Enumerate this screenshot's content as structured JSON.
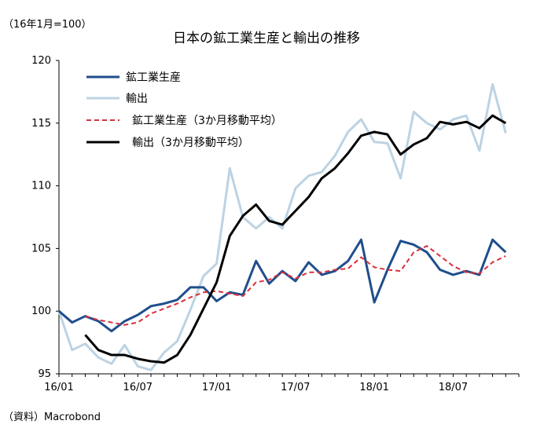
{
  "chart_data": {
    "type": "line",
    "title": "日本の鉱工業生産と輸出の推移",
    "index_note": "（16年1月=100）",
    "source_note": "（資料）Macrobond",
    "xlabel": "",
    "ylabel": "",
    "ylim": [
      95,
      120
    ],
    "y_ticks": [
      "95",
      "100",
      "105",
      "110",
      "115",
      "120"
    ],
    "x_ticks": [
      "16/01",
      "16/07",
      "17/01",
      "17/07",
      "18/01",
      "18/07"
    ],
    "grid": false,
    "legend_position": "top-left",
    "x": [
      "16/01",
      "16/02",
      "16/03",
      "16/04",
      "16/05",
      "16/06",
      "16/07",
      "16/08",
      "16/09",
      "16/10",
      "16/11",
      "16/12",
      "17/01",
      "17/02",
      "17/03",
      "17/04",
      "17/05",
      "17/06",
      "17/07",
      "17/08",
      "17/09",
      "17/10",
      "17/11",
      "17/12",
      "18/01",
      "18/02",
      "18/03",
      "18/04",
      "18/05",
      "18/06",
      "18/07",
      "18/08",
      "18/09",
      "18/10",
      "18/11",
      "18/12"
    ],
    "series": [
      {
        "name": "鉱工業生産",
        "color": "#1f4e8c",
        "dash": "solid",
        "width": 3,
        "values": [
          100.0,
          99.1,
          99.6,
          99.2,
          98.4,
          99.2,
          99.7,
          100.4,
          100.6,
          100.9,
          101.9,
          101.9,
          100.8,
          101.5,
          101.3,
          104.0,
          102.2,
          103.2,
          102.4,
          103.9,
          102.9,
          103.2,
          104.0,
          105.7,
          100.7,
          103.3,
          105.6,
          105.3,
          104.7,
          103.3,
          102.9,
          103.2,
          102.9,
          105.7,
          104.7,
          null
        ]
      },
      {
        "name": "輸出",
        "color": "#bcd3e3",
        "dash": "solid",
        "width": 3,
        "values": [
          100.0,
          96.9,
          97.4,
          96.3,
          95.8,
          97.3,
          95.6,
          95.3,
          96.7,
          97.6,
          100.1,
          102.8,
          103.8,
          111.4,
          107.5,
          106.6,
          107.5,
          106.6,
          109.8,
          110.8,
          111.1,
          112.4,
          114.3,
          115.3,
          113.5,
          113.4,
          110.6,
          115.9,
          115.0,
          114.5,
          115.3,
          115.6,
          112.8,
          118.1,
          114.2,
          null
        ]
      },
      {
        "name": "鉱工業生産（3か月移動平均）",
        "color": "#d9303c",
        "dash": "dashed",
        "width": 2,
        "values": [
          null,
          null,
          99.6,
          99.3,
          99.1,
          98.9,
          99.1,
          99.8,
          100.2,
          100.6,
          101.1,
          101.5,
          101.6,
          101.4,
          101.2,
          102.3,
          102.5,
          103.1,
          102.6,
          103.1,
          103.1,
          103.3,
          103.4,
          104.3,
          103.5,
          103.3,
          103.2,
          104.7,
          105.2,
          104.4,
          103.6,
          103.1,
          103.0,
          103.9,
          104.4,
          null
        ]
      },
      {
        "name": "輸出（3か月移動平均）",
        "color": "#000000",
        "dash": "solid",
        "width": 3,
        "values": [
          null,
          null,
          98.1,
          96.9,
          96.5,
          96.5,
          96.2,
          96.0,
          95.9,
          96.5,
          98.1,
          100.2,
          102.3,
          106.0,
          107.6,
          108.5,
          107.2,
          106.9,
          108.0,
          109.1,
          110.6,
          111.4,
          112.6,
          114.0,
          114.3,
          114.1,
          112.5,
          113.3,
          113.8,
          115.1,
          114.9,
          115.1,
          114.6,
          115.6,
          115.0,
          null
        ]
      }
    ]
  }
}
